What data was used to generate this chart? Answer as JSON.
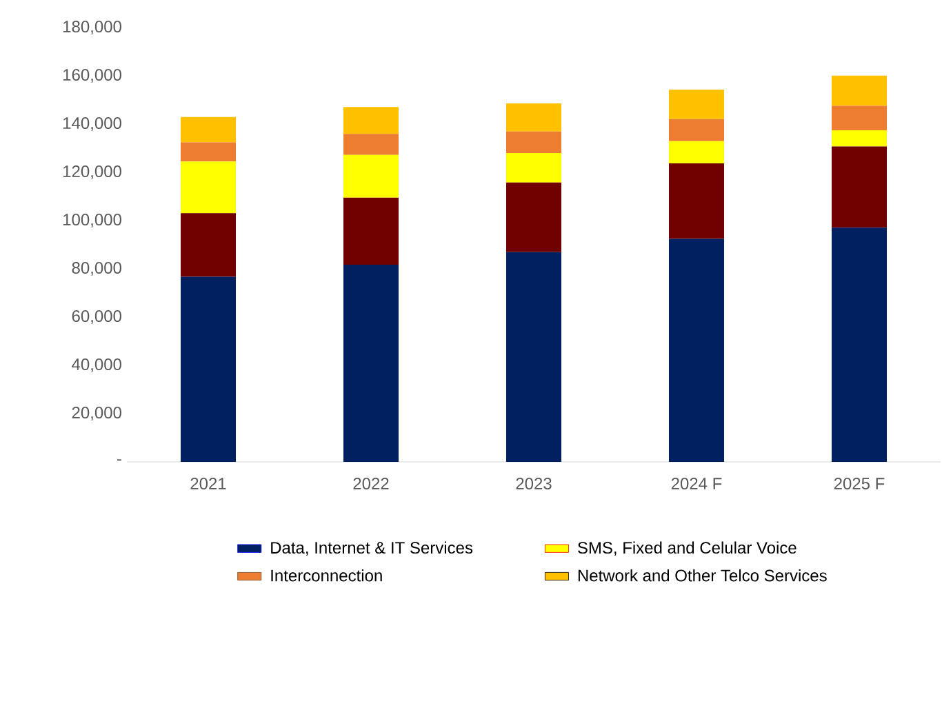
{
  "chart_data": {
    "type": "bar",
    "stacked": true,
    "categories": [
      "2021",
      "2022",
      "2023",
      "2024 F",
      "2025 F"
    ],
    "series": [
      {
        "name": "Data, Internet & IT Services",
        "color": "#002060",
        "values": [
          76700,
          81700,
          86900,
          92400,
          97100
        ]
      },
      {
        "color": "#700000",
        "values": [
          26400,
          27800,
          28900,
          31300,
          33600
        ]
      },
      {
        "name": "SMS, Fixed and Celular Voice",
        "color": "#ffff00",
        "values": [
          21400,
          17700,
          12200,
          9200,
          6700
        ]
      },
      {
        "name": "Interconnection",
        "color": "#ed7d31",
        "values": [
          7900,
          8700,
          8900,
          9200,
          10200
        ]
      },
      {
        "name": "Network and Other Telco Services",
        "color": "#ffc000",
        "values": [
          10500,
          11200,
          11700,
          12200,
          12500
        ]
      }
    ],
    "ylim": [
      0,
      180000
    ],
    "yticks": [
      {
        "value": 0,
        "label": "-"
      },
      {
        "value": 20000,
        "label": "20,000"
      },
      {
        "value": 40000,
        "label": "40,000"
      },
      {
        "value": 60000,
        "label": "60,000"
      },
      {
        "value": 80000,
        "label": "80,000"
      },
      {
        "value": 100000,
        "label": "100,000"
      },
      {
        "value": 120000,
        "label": "120,000"
      },
      {
        "value": 140000,
        "label": "140,000"
      },
      {
        "value": 160000,
        "label": "160,000"
      },
      {
        "value": 180000,
        "label": "180,000"
      }
    ],
    "grid": false,
    "legend": "bottom"
  }
}
